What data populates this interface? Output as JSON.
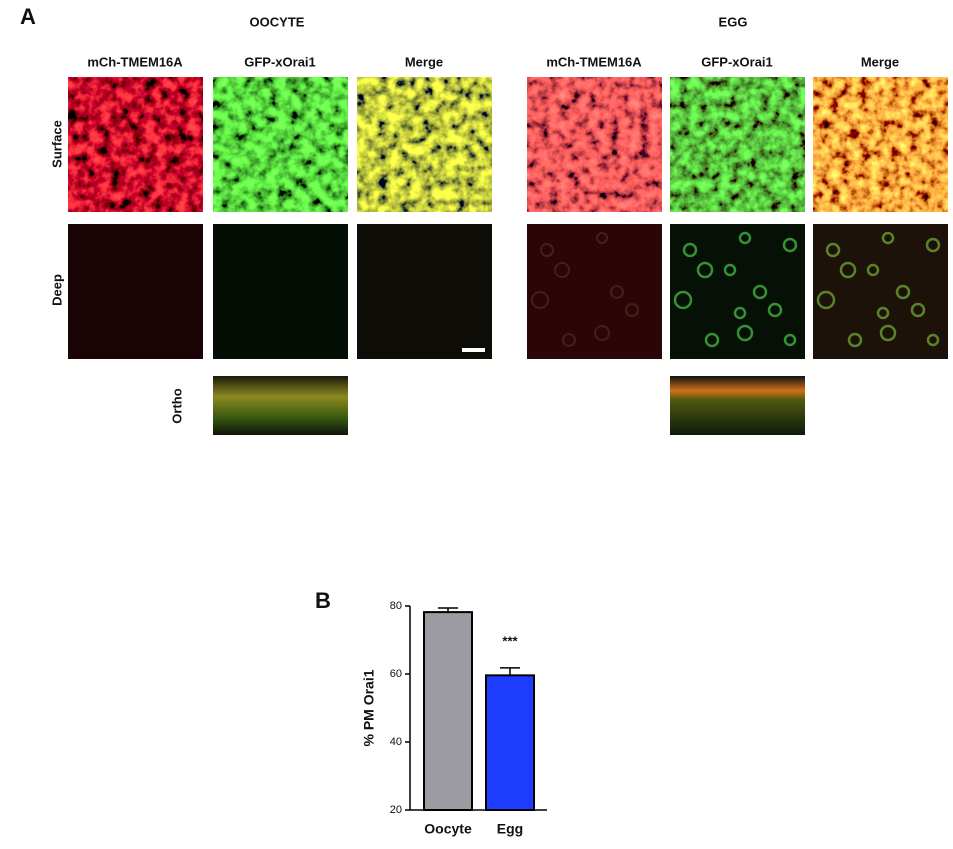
{
  "panel_a": {
    "label": "A",
    "groups": [
      {
        "title": "OOCYTE",
        "columns": [
          "mCh-TMEM16A",
          "GFP-xOrai1",
          "Merge"
        ]
      },
      {
        "title": "EGG",
        "columns": [
          "mCh-TMEM16A",
          "GFP-xOrai1",
          "Merge"
        ]
      }
    ],
    "rows": [
      "Surface",
      "Deep",
      "Ortho"
    ]
  },
  "chart_data": {
    "type": "bar",
    "label": "B",
    "y_label": "% PM Orai1",
    "categories": [
      "Oocyte",
      "Egg"
    ],
    "values": [
      78.2,
      59.6
    ],
    "errors": [
      1.2,
      2.2
    ],
    "colors": [
      "#9b9ba1",
      "#1f3dff"
    ],
    "annotation": "***",
    "ylim": [
      20,
      80
    ],
    "yticks": [
      20,
      40,
      60,
      80
    ],
    "grid": false
  }
}
